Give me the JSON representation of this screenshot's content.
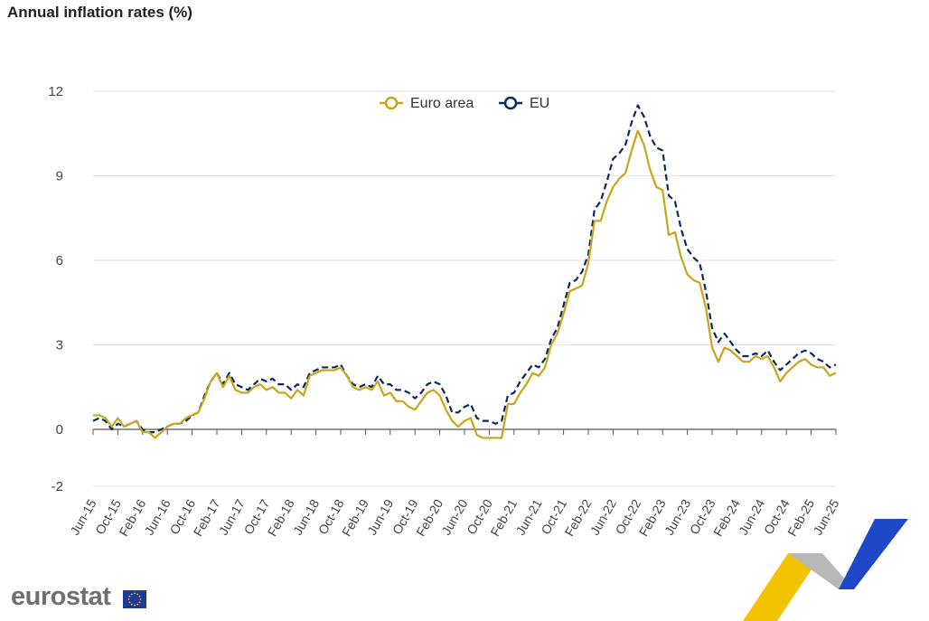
{
  "header": {
    "title": "Annual inflation rates (%)"
  },
  "branding": {
    "logo_text": "eurostat"
  },
  "colors": {
    "euro_area": "#c8a51a",
    "eu": "#0d2a5c",
    "ribbon_yellow": "#f3c300",
    "ribbon_blue": "#1f48c8",
    "ribbon_grey": "#b8b8b8"
  },
  "chart_data": {
    "type": "line",
    "title": "Annual inflation rates (%)",
    "xlabel": "",
    "ylabel": "",
    "ylim": [
      -2,
      12
    ],
    "yticks": [
      -2,
      0,
      3,
      6,
      9,
      12
    ],
    "grid": true,
    "legend_position": "top-center",
    "x_tick_labels": [
      "Jun-15",
      "Oct-15",
      "Feb-16",
      "Jun-16",
      "Oct-16",
      "Feb-17",
      "Jun-17",
      "Oct-17",
      "Feb-18",
      "Jun-18",
      "Oct-18",
      "Feb-19",
      "Jun-19",
      "Oct-19",
      "Feb-20",
      "Jun-20",
      "Oct-20",
      "Feb-21",
      "Jun-21",
      "Oct-21",
      "Feb-22",
      "Jun-22",
      "Oct-22",
      "Feb-23",
      "Jun-23",
      "Oct-23",
      "Feb-24",
      "Jun-24",
      "Oct-24",
      "Feb-25",
      "Jun-25"
    ],
    "x_start": "Jun-15",
    "x_end": "Jun-25",
    "frequency": "monthly",
    "series": [
      {
        "name": "Euro area",
        "color": "#c8a51a",
        "style": "solid",
        "values": [
          0.5,
          0.5,
          0.4,
          0.1,
          0.4,
          0.1,
          0.2,
          0.3,
          -0.1,
          -0.1,
          -0.3,
          -0.1,
          0.1,
          0.2,
          0.2,
          0.4,
          0.5,
          0.6,
          1.1,
          1.7,
          2.0,
          1.5,
          1.9,
          1.4,
          1.3,
          1.3,
          1.5,
          1.6,
          1.4,
          1.5,
          1.3,
          1.3,
          1.1,
          1.4,
          1.2,
          1.9,
          2.0,
          2.1,
          2.1,
          2.1,
          2.2,
          1.9,
          1.5,
          1.4,
          1.5,
          1.4,
          1.7,
          1.2,
          1.3,
          1.0,
          1.0,
          0.8,
          0.7,
          1.0,
          1.3,
          1.4,
          1.2,
          0.7,
          0.3,
          0.1,
          0.3,
          0.4,
          -0.2,
          -0.3,
          -0.3,
          -0.3,
          -0.3,
          0.9,
          0.9,
          1.3,
          1.6,
          2.0,
          1.9,
          2.2,
          3.0,
          3.4,
          4.1,
          4.9,
          5.0,
          5.1,
          5.9,
          7.4,
          7.4,
          8.1,
          8.6,
          8.9,
          9.1,
          9.9,
          10.6,
          10.1,
          9.2,
          8.6,
          8.5,
          6.9,
          7.0,
          6.1,
          5.5,
          5.3,
          5.2,
          4.3,
          2.9,
          2.4,
          2.9,
          2.8,
          2.6,
          2.4,
          2.4,
          2.6,
          2.5,
          2.6,
          2.2,
          1.7,
          2.0,
          2.2,
          2.4,
          2.5,
          2.3,
          2.2,
          2.2,
          1.9,
          2.0
        ]
      },
      {
        "name": "EU",
        "color": "#0d2a5c",
        "style": "dashed",
        "values": [
          0.3,
          0.4,
          0.3,
          0.0,
          0.2,
          0.1,
          0.2,
          0.3,
          0.0,
          -0.1,
          -0.1,
          0.0,
          0.1,
          0.2,
          0.2,
          0.3,
          0.5,
          0.6,
          1.2,
          1.7,
          2.0,
          1.6,
          2.0,
          1.6,
          1.5,
          1.4,
          1.6,
          1.8,
          1.7,
          1.8,
          1.6,
          1.6,
          1.4,
          1.6,
          1.5,
          2.0,
          2.1,
          2.2,
          2.2,
          2.2,
          2.3,
          1.9,
          1.6,
          1.5,
          1.6,
          1.5,
          1.9,
          1.6,
          1.6,
          1.4,
          1.4,
          1.3,
          1.1,
          1.3,
          1.6,
          1.7,
          1.6,
          1.2,
          0.6,
          0.6,
          0.8,
          0.9,
          0.4,
          0.3,
          0.3,
          0.2,
          0.3,
          1.2,
          1.3,
          1.7,
          2.0,
          2.3,
          2.2,
          2.5,
          3.2,
          3.6,
          4.4,
          5.2,
          5.3,
          5.6,
          6.2,
          7.8,
          8.1,
          8.8,
          9.6,
          9.8,
          10.1,
          10.9,
          11.5,
          11.1,
          10.4,
          10.0,
          9.9,
          8.3,
          8.1,
          7.1,
          6.4,
          6.1,
          5.9,
          4.9,
          3.6,
          3.1,
          3.4,
          3.1,
          2.8,
          2.6,
          2.6,
          2.7,
          2.6,
          2.8,
          2.4,
          2.1,
          2.3,
          2.5,
          2.7,
          2.8,
          2.7,
          2.5,
          2.4,
          2.2,
          2.3
        ]
      }
    ]
  }
}
